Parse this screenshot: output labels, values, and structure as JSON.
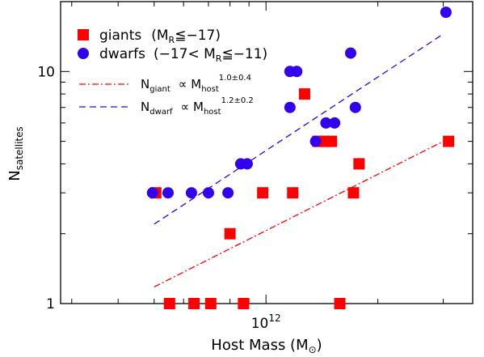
{
  "chart_data": {
    "type": "scatter",
    "xlabel_main": "Host Mass (M",
    "xlabel_sub_symbol": "⊙",
    "xlabel_close": ")",
    "ylabel_main": "N",
    "ylabel_sub": "satellites",
    "x_scale": "log",
    "y_scale": "log",
    "xlim": [
      280000000000.0,
      3600000000000.0
    ],
    "ylim": [
      1,
      20
    ],
    "x_ticks": [
      {
        "value": 1000000000000.0,
        "base": "10",
        "exp": "12"
      }
    ],
    "y_ticks": [
      {
        "value": 1,
        "label": "1"
      },
      {
        "value": 10,
        "label": "10"
      }
    ],
    "grid": false,
    "legend_position": "top-left",
    "series": [
      {
        "name_main": "giants",
        "name_cond_open": "(M",
        "name_cond_sub": "R",
        "name_cond_rel": "≦−17)",
        "marker": "square",
        "color": "#ff0000",
        "points": [
          {
            "x": 505000000000.0,
            "y": 3
          },
          {
            "x": 550000000000.0,
            "y": 1
          },
          {
            "x": 640000000000.0,
            "y": 1
          },
          {
            "x": 710000000000.0,
            "y": 1
          },
          {
            "x": 800000000000.0,
            "y": 2
          },
          {
            "x": 870000000000.0,
            "y": 1
          },
          {
            "x": 980000000000.0,
            "y": 3
          },
          {
            "x": 1180000000000.0,
            "y": 3
          },
          {
            "x": 1270000000000.0,
            "y": 8
          },
          {
            "x": 1380000000000.0,
            "y": 5
          },
          {
            "x": 1430000000000.0,
            "y": 5
          },
          {
            "x": 1500000000000.0,
            "y": 5
          },
          {
            "x": 1580000000000.0,
            "y": 1
          },
          {
            "x": 1720000000000.0,
            "y": 3
          },
          {
            "x": 1780000000000.0,
            "y": 4
          },
          {
            "x": 3100000000000.0,
            "y": 5
          }
        ]
      },
      {
        "name_main": "dwarfs",
        "name_cond_open": "(−17< M",
        "name_cond_sub": "R",
        "name_cond_rel": "≦−11)",
        "marker": "circle",
        "color": "#3300ee",
        "points": [
          {
            "x": 495000000000.0,
            "y": 3
          },
          {
            "x": 545000000000.0,
            "y": 3
          },
          {
            "x": 630000000000.0,
            "y": 3
          },
          {
            "x": 700000000000.0,
            "y": 3
          },
          {
            "x": 790000000000.0,
            "y": 3
          },
          {
            "x": 855000000000.0,
            "y": 4
          },
          {
            "x": 890000000000.0,
            "y": 4
          },
          {
            "x": 1160000000000.0,
            "y": 7
          },
          {
            "x": 1160000000000.0,
            "y": 10
          },
          {
            "x": 1210000000000.0,
            "y": 10
          },
          {
            "x": 1360000000000.0,
            "y": 5
          },
          {
            "x": 1450000000000.0,
            "y": 6
          },
          {
            "x": 1530000000000.0,
            "y": 6
          },
          {
            "x": 1690000000000.0,
            "y": 12
          },
          {
            "x": 1740000000000.0,
            "y": 7
          },
          {
            "x": 3050000000000.0,
            "y": 18
          }
        ]
      }
    ],
    "fit_lines": [
      {
        "label_main": "N",
        "label_sub": "giant",
        "label_prop": "∝  M",
        "label_host_sub": "host",
        "label_exp": "1.0±0.4",
        "color": "#ff0000",
        "style": "dash-dot",
        "x": [
          500000000000.0,
          3000000000000.0
        ],
        "y": [
          1.18,
          5.0
        ]
      },
      {
        "label_main": "N",
        "label_sub": "dwarf",
        "label_prop": "∝  M",
        "label_host_sub": "host",
        "label_exp": "1.2±0.2",
        "color": "#3300ee",
        "style": "dashed",
        "x": [
          500000000000.0,
          3000000000000.0
        ],
        "y": [
          2.2,
          14.5
        ]
      }
    ]
  }
}
